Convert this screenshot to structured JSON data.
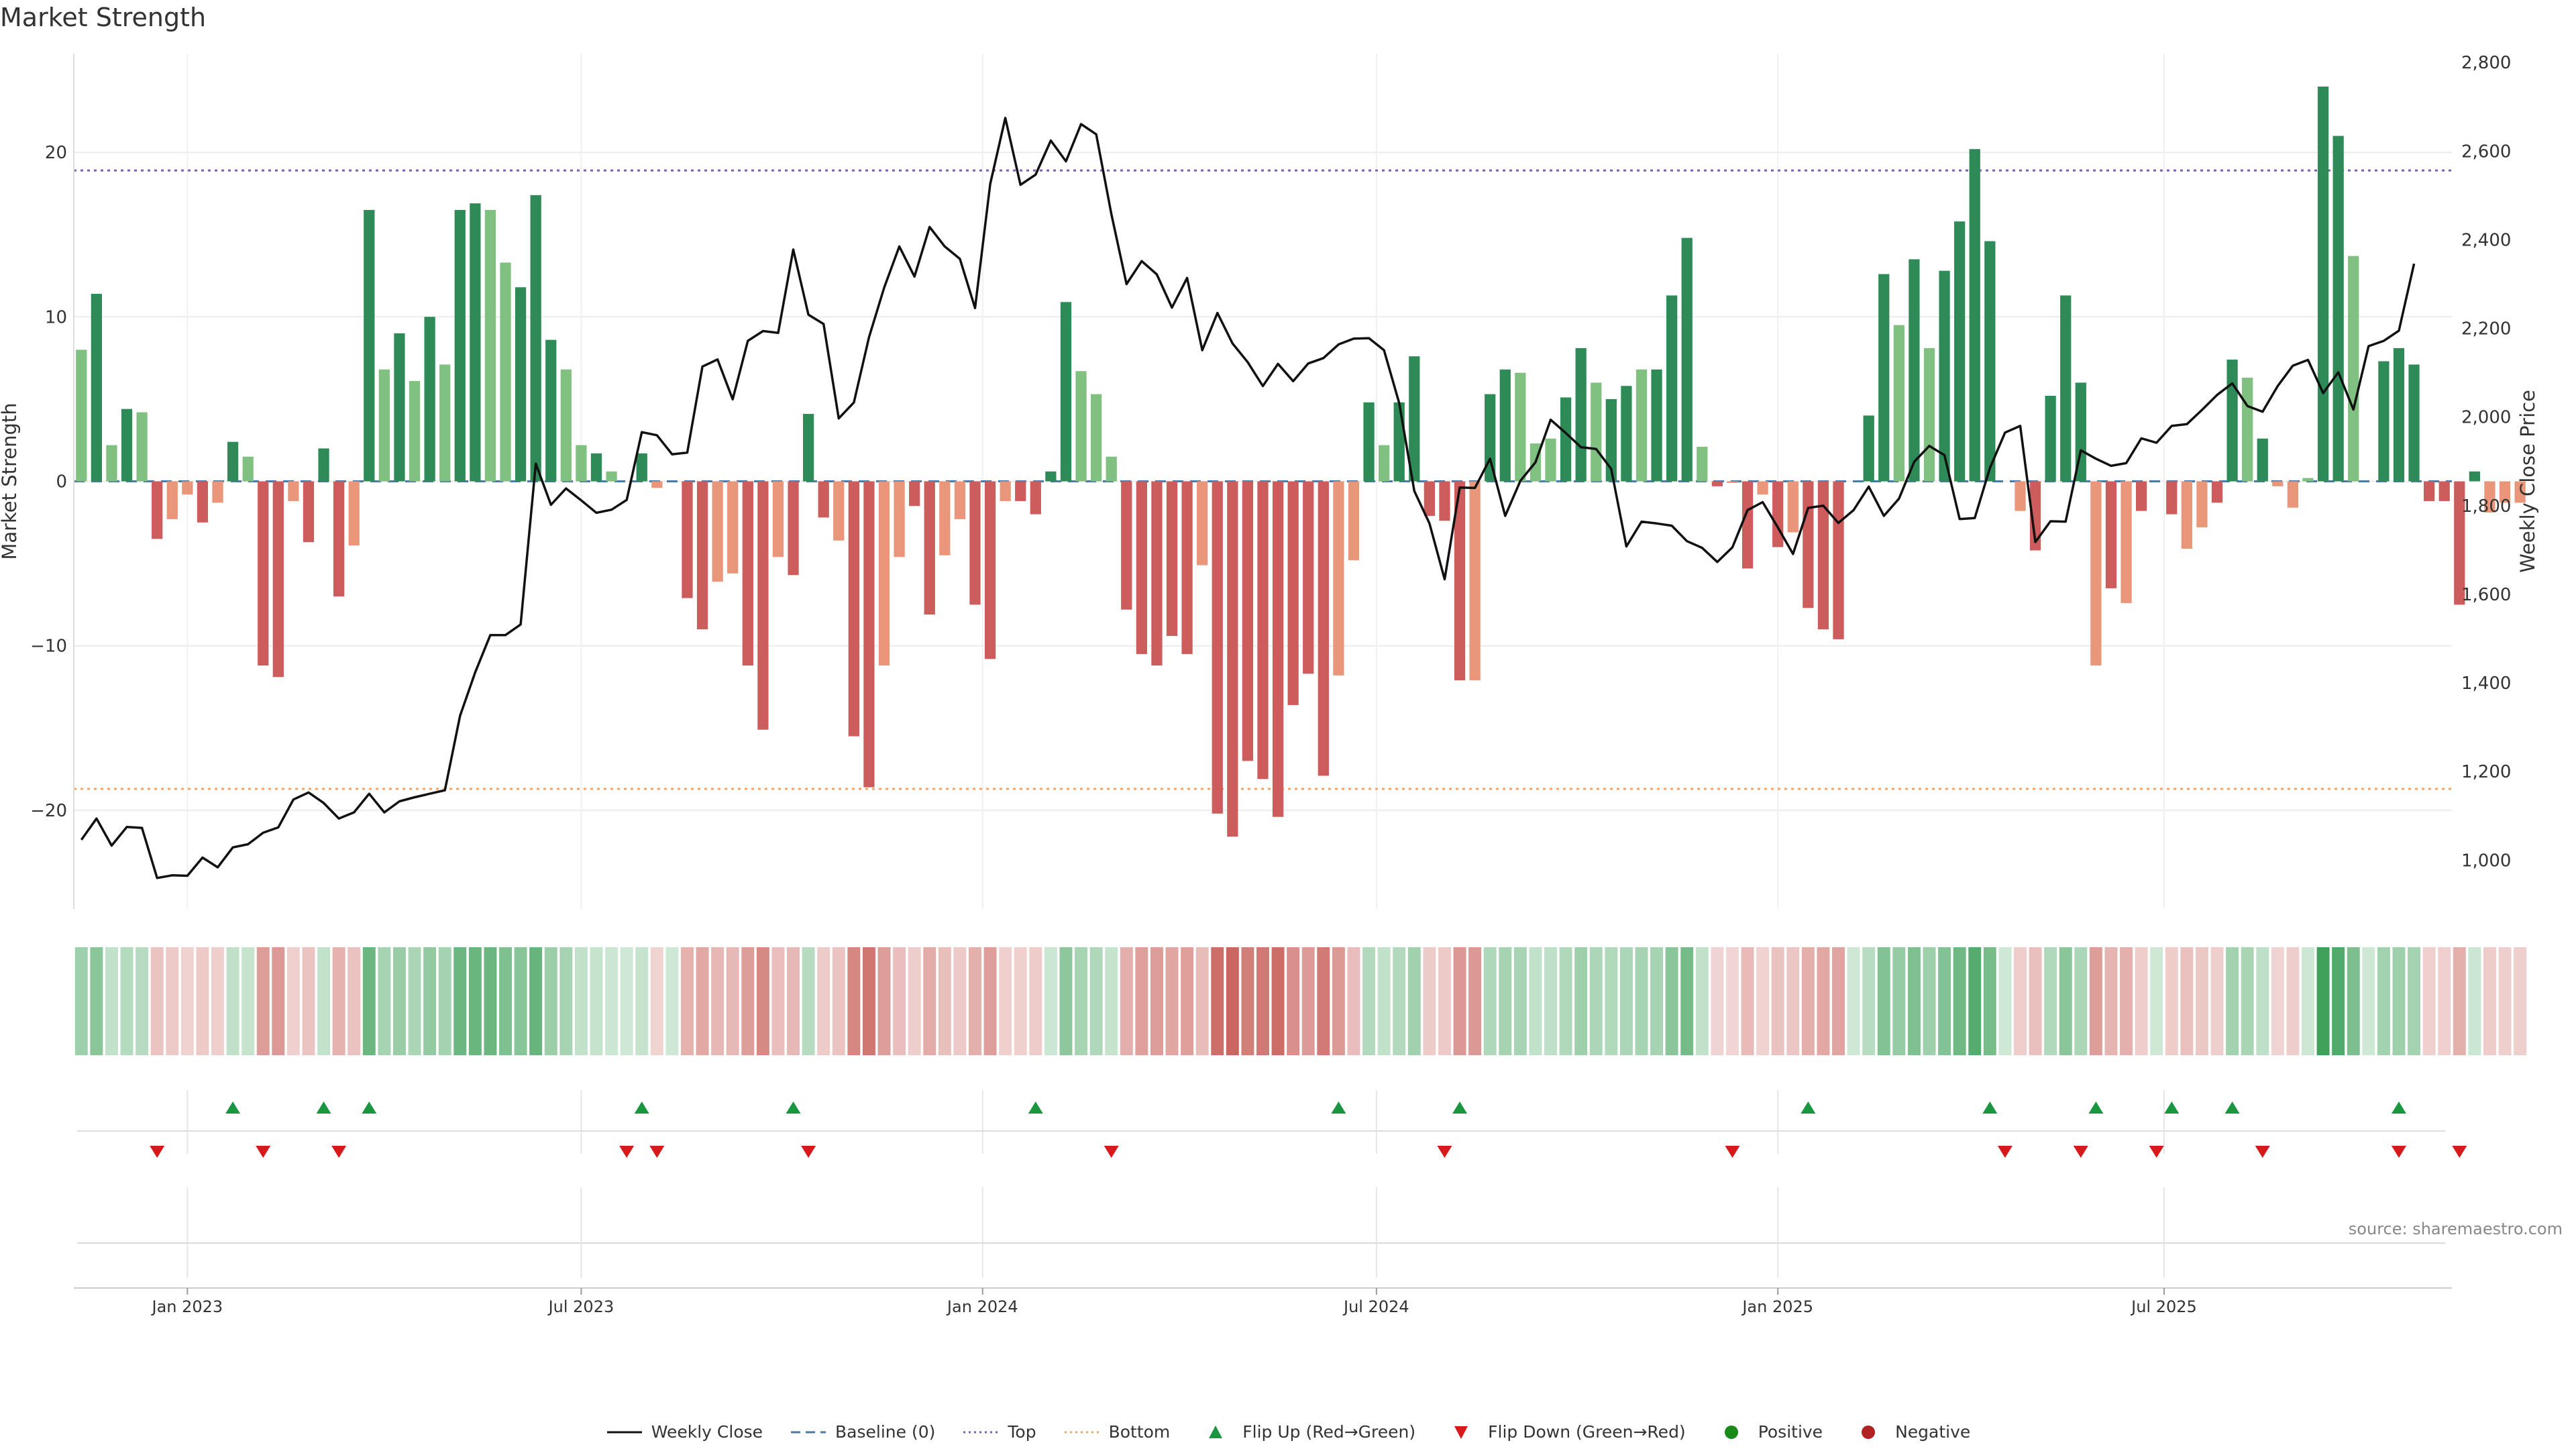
{
  "title": "Market Strength",
  "source": "source: sharemaestro.com",
  "colors": {
    "strong_green": "#2e8b57",
    "light_green": "#80c080",
    "strong_red": "#cd5c5c",
    "light_red": "#e9967a",
    "price_line": "#111111",
    "baseline": "#4a7ba6",
    "top_line": "#7b5fb5",
    "bottom_line": "#f4a460",
    "flip_up": "#1a9641",
    "flip_down": "#d7191c",
    "positive": "#1a8a1a",
    "negative": "#b22222"
  },
  "legend": [
    {
      "key": "close",
      "label": "Weekly Close"
    },
    {
      "key": "baseline",
      "label": "Baseline (0)"
    },
    {
      "key": "top",
      "label": "Top"
    },
    {
      "key": "bottom",
      "label": "Bottom"
    },
    {
      "key": "flip_up",
      "label": "Flip Up (Red→Green)"
    },
    {
      "key": "flip_down",
      "label": "Flip Down (Green→Red)"
    },
    {
      "key": "positive",
      "label": "Positive"
    },
    {
      "key": "negative",
      "label": "Negative"
    }
  ],
  "chart_data": {
    "type": "bar+line",
    "title": "Market Strength",
    "ylabel_left": "Market Strength",
    "ylabel_right": "Weekly Close Price",
    "ylim_left": [
      -26,
      26
    ],
    "ylim_right": [
      890,
      2820
    ],
    "yticks_left": [
      20,
      10,
      0,
      -10,
      -20
    ],
    "ytick_labels_left": [
      "20",
      "10",
      "0",
      "−10",
      "−20"
    ],
    "yticks_right": [
      2800,
      2600,
      2400,
      2200,
      2000,
      1800,
      1600,
      1400,
      1200,
      1000
    ],
    "ytick_labels_right": [
      "2,800",
      "2,600",
      "2,400",
      "2,200",
      "2,000",
      "1,800",
      "1,600",
      "1,400",
      "1,200",
      "1,000"
    ],
    "x_range": [
      -0.5,
      156.5
    ],
    "xticks": [
      7,
      33,
      59.5,
      85.5,
      112,
      137.5
    ],
    "xtick_labels": [
      "Jan 2023",
      "Jul 2023",
      "Jan 2024",
      "Jul 2024",
      "Jan 2025",
      "Jul 2025"
    ],
    "top_level": 18.9,
    "bottom_level": -18.7,
    "strength": [
      8,
      11.4,
      2.2,
      4.4,
      4.2,
      -3.5,
      -2.3,
      -0.8,
      -2.5,
      -1.3,
      2.4,
      1.5,
      -11.2,
      -11.9,
      -1.2,
      -3.7,
      2,
      -7,
      -3.9,
      16.5,
      6.8,
      9,
      6.1,
      10,
      7.1,
      16.5,
      16.9,
      16.5,
      13.3,
      11.8,
      17.4,
      8.6,
      6.8,
      2.2,
      1.7,
      0.6,
      0,
      1.7,
      -0.4,
      0,
      -7.1,
      -9,
      -6.1,
      -5.6,
      -11.2,
      -15.1,
      -4.6,
      -5.7,
      4.1,
      -2.2,
      -3.6,
      -15.5,
      -18.6,
      -11.2,
      -4.6,
      -1.5,
      -8.1,
      -4.5,
      -2.3,
      -7.5,
      -10.8,
      -1.2,
      -1.2,
      -2,
      0.6,
      10.9,
      6.7,
      5.3,
      1.5,
      -7.8,
      -10.5,
      -11.2,
      -9.4,
      -10.5,
      -5.1,
      -20.2,
      -21.6,
      -17,
      -18.1,
      -20.4,
      -13.6,
      -11.7,
      -17.9,
      -11.8,
      -4.8,
      4.8,
      2.2,
      4.8,
      7.6,
      -2.1,
      -2.4,
      -12.1,
      -12.1,
      5.3,
      6.8,
      6.6,
      2.3,
      2.6,
      5.1,
      8.1,
      6,
      5,
      5.8,
      6.8,
      6.8,
      11.3,
      14.8,
      2.1,
      -0.3,
      -0.1,
      -5.3,
      -0.8,
      -4,
      -3.1,
      -7.7,
      -9,
      -9.6,
      0,
      4,
      12.6,
      9.5,
      13.5,
      8.1,
      12.8,
      15.8,
      20.2,
      14.6,
      0,
      -1.8,
      -4.2,
      5.2,
      11.3,
      6,
      -11.2,
      -6.5,
      -7.4,
      -1.8,
      0,
      -2,
      -4.1,
      -2.8,
      -1.3,
      7.4,
      6.3,
      2.6,
      -0.3,
      -1.6,
      0.2,
      24,
      21,
      13.7,
      0,
      7.3,
      8.1,
      7.1,
      -1.2,
      -1.2,
      -7.5,
      0.6,
      -1.9,
      -1.3,
      -1.3
    ],
    "shade": [
      1,
      0,
      1,
      0,
      1,
      0,
      1,
      1,
      0,
      1,
      0,
      1,
      0,
      0,
      1,
      0,
      0,
      0,
      1,
      0,
      1,
      0,
      1,
      0,
      1,
      0,
      0,
      1,
      1,
      0,
      0,
      0,
      1,
      1,
      0,
      1,
      0,
      0,
      1,
      1,
      0,
      0,
      1,
      1,
      0,
      0,
      1,
      0,
      0,
      0,
      1,
      0,
      0,
      1,
      1,
      0,
      0,
      1,
      1,
      0,
      0,
      1,
      0,
      0,
      0,
      0,
      1,
      1,
      1,
      0,
      0,
      0,
      0,
      0,
      1,
      0,
      0,
      0,
      0,
      0,
      0,
      0,
      0,
      1,
      1,
      0,
      1,
      0,
      0,
      0,
      0,
      0,
      1,
      0,
      0,
      1,
      1,
      1,
      0,
      0,
      1,
      0,
      0,
      1,
      0,
      0,
      0,
      1,
      0,
      1,
      0,
      1,
      0,
      1,
      0,
      0,
      0,
      1,
      0,
      0,
      1,
      0,
      1,
      0,
      0,
      0,
      0,
      1,
      1,
      0,
      0,
      0,
      0,
      1,
      0,
      1,
      0,
      1,
      0,
      1,
      1,
      0,
      0,
      1,
      0,
      1,
      1,
      1,
      0,
      0,
      1,
      1,
      0,
      0,
      0,
      0,
      0,
      0,
      0,
      1
    ],
    "close": [
      1046,
      1094,
      1033,
      1075,
      1073,
      960,
      966,
      965,
      1006,
      984,
      1029,
      1036,
      1062,
      1074,
      1137,
      1153,
      1129,
      1094,
      1108,
      1150,
      1108,
      1133,
      1142,
      1150,
      1158,
      1326,
      1424,
      1508,
      1508,
      1532,
      1895,
      1802,
      1839,
      1812,
      1784,
      1791,
      1813,
      1966,
      1959,
      1916,
      1920,
      2114,
      2130,
      2040,
      2172,
      2194,
      2190,
      2378,
      2231,
      2210,
      1997,
      2033,
      2180,
      2292,
      2385,
      2317,
      2429,
      2385,
      2357,
      2246,
      2526,
      2675,
      2524,
      2547,
      2624,
      2577,
      2661,
      2638,
      2458,
      2300,
      2352,
      2322,
      2247,
      2314,
      2151,
      2235,
      2166,
      2124,
      2070,
      2120,
      2081,
      2121,
      2133,
      2164,
      2177,
      2178,
      2151,
      2032,
      1833,
      1760,
      1634,
      1841,
      1840,
      1906,
      1777,
      1856,
      1898,
      1994,
      1964,
      1932,
      1928,
      1883,
      1708,
      1764,
      1760,
      1755,
      1720,
      1705,
      1673,
      1706,
      1790,
      1808,
      1751,
      1691,
      1795,
      1800,
      1761,
      1790,
      1843,
      1777,
      1816,
      1899,
      1935,
      1914,
      1770,
      1772,
      1885,
      1965,
      1980,
      1718,
      1765,
      1764,
      1925,
      1906,
      1890,
      1896,
      1952,
      1942,
      1980,
      1984,
      2016,
      2050,
      2076,
      2025,
      2012,
      2070,
      2116,
      2129,
      2054,
      2101,
      2017,
      2160,
      2172,
      2195,
      2346
    ],
    "flip_up": [
      10,
      16,
      19,
      37,
      47,
      63,
      83,
      91,
      114,
      126,
      133,
      138,
      142,
      153
    ],
    "flip_down": [
      5,
      12,
      17,
      36,
      38,
      48,
      68,
      90,
      109,
      127,
      132,
      137,
      144,
      153,
      157
    ]
  }
}
